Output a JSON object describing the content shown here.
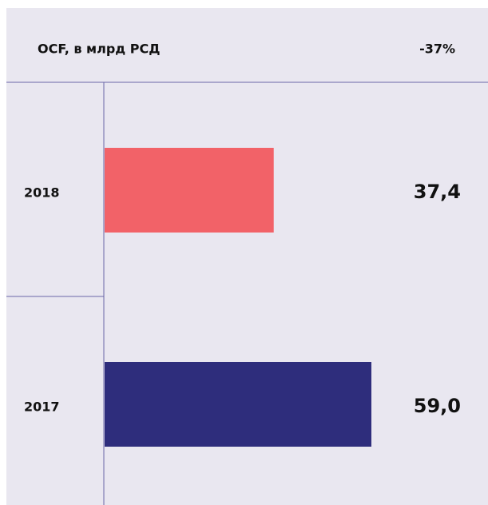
{
  "chart_data": {
    "type": "bar",
    "orientation": "horizontal",
    "title": "OCF, в млрд РСД",
    "annotation": "-37%",
    "categories": [
      "2018",
      "2017"
    ],
    "values": [
      37.4,
      59.0
    ],
    "value_labels": [
      "37,4",
      "59,0"
    ],
    "colors": [
      "#f26268",
      "#2e2d7c"
    ]
  }
}
